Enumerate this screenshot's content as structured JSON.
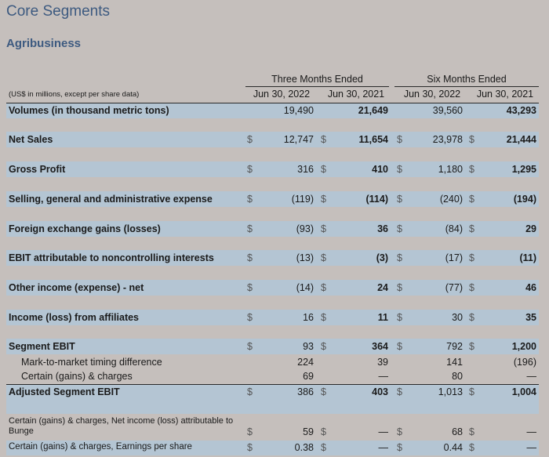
{
  "title": "Core Segments",
  "subtitle": "Agribusiness",
  "units_note": "(US$ in millions, except per share data)",
  "groups": [
    "Three Months Ended",
    "Six Months Ended"
  ],
  "dates": [
    "Jun 30, 2022",
    "Jun 30, 2021",
    "Jun 30, 2022",
    "Jun 30, 2021"
  ],
  "rows": [
    {
      "label": "Volumes (in thousand metric tons)",
      "d": [
        "",
        "",
        "",
        ""
      ],
      "v": [
        "19,490",
        "21,649",
        "39,560",
        "43,293"
      ]
    },
    {
      "label": "Net Sales",
      "d": [
        "$",
        "$",
        "$",
        "$"
      ],
      "v": [
        "12,747",
        "11,654",
        "23,978",
        "21,444"
      ]
    },
    {
      "label": "Gross Profit",
      "d": [
        "$",
        "$",
        "$",
        "$"
      ],
      "v": [
        "316",
        "410",
        "1,180",
        "1,295"
      ]
    },
    {
      "label": "Selling, general and administrative expense",
      "d": [
        "$",
        "$",
        "$",
        "$"
      ],
      "v": [
        "(119)",
        "(114)",
        "(240)",
        "(194)"
      ]
    },
    {
      "label": "Foreign exchange gains (losses)",
      "d": [
        "$",
        "$",
        "$",
        "$"
      ],
      "v": [
        "(93)",
        "36",
        "(84)",
        "29"
      ]
    },
    {
      "label": "EBIT attributable to noncontrolling interests",
      "d": [
        "$",
        "$",
        "$",
        "$"
      ],
      "v": [
        "(13)",
        "(3)",
        "(17)",
        "(11)"
      ]
    },
    {
      "label": "Other income (expense) - net",
      "d": [
        "$",
        "$",
        "$",
        "$"
      ],
      "v": [
        "(14)",
        "24",
        "(77)",
        "46"
      ]
    },
    {
      "label": "Income (loss) from affiliates",
      "d": [
        "$",
        "$",
        "$",
        "$"
      ],
      "v": [
        "16",
        "11",
        "30",
        "35"
      ]
    },
    {
      "label": "Segment EBIT",
      "d": [
        "$",
        "$",
        "$",
        "$"
      ],
      "v": [
        "93",
        "364",
        "792",
        "1,200"
      ]
    },
    {
      "label": "Mark-to-market timing difference",
      "d": [
        "",
        "",
        "",
        ""
      ],
      "v": [
        "224",
        "39",
        "141",
        "(196)"
      ]
    },
    {
      "label": "Certain (gains) & charges",
      "d": [
        "",
        "",
        "",
        ""
      ],
      "v": [
        "69",
        "—",
        "80",
        "—"
      ]
    },
    {
      "label": "Adjusted Segment EBIT",
      "d": [
        "$",
        "$",
        "$",
        "$"
      ],
      "v": [
        "386",
        "403",
        "1,013",
        "1,004"
      ]
    },
    {
      "label": "Certain (gains) & charges, Net income (loss) attributable to Bunge",
      "d": [
        "$",
        "$",
        "$",
        "$"
      ],
      "v": [
        "59",
        "—",
        "68",
        "—"
      ]
    },
    {
      "label": "Certain (gains) & charges, Earnings per share",
      "d": [
        "$",
        "$",
        "$",
        "$"
      ],
      "v": [
        "0.38",
        "—",
        "0.44",
        "—"
      ]
    }
  ]
}
